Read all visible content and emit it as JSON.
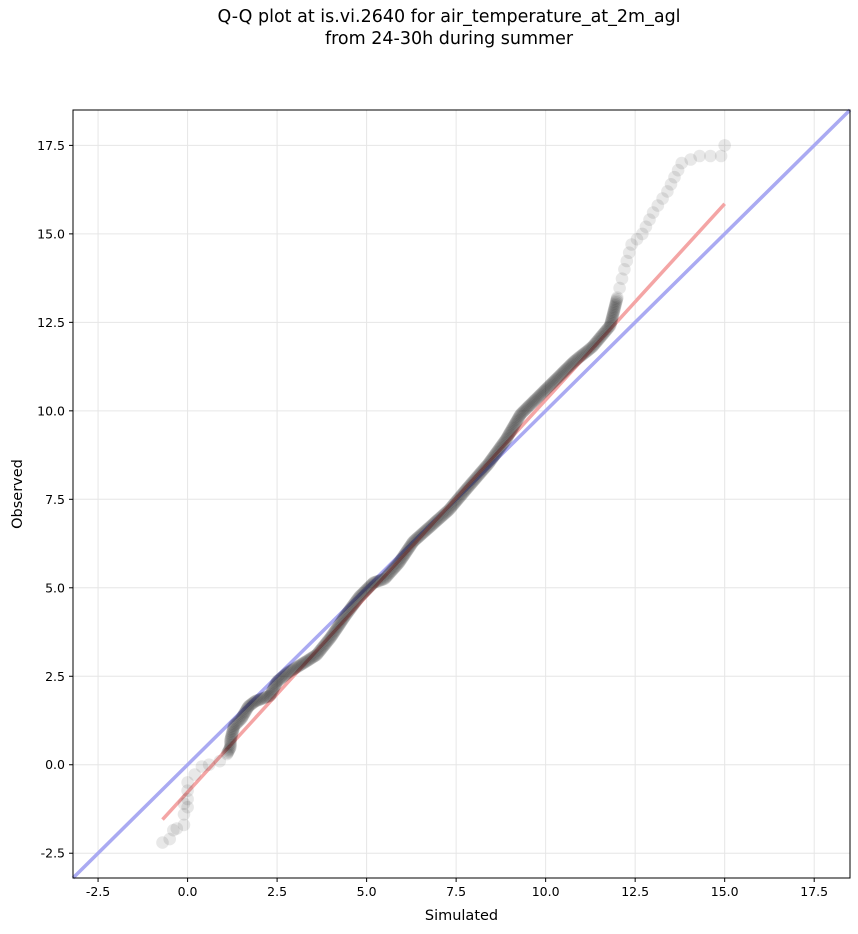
{
  "chart_data": {
    "type": "scatter",
    "title_lines": [
      "Q-Q plot at is.vi.2640 for air_temperature_at_2m_agl",
      "from 24-30h during summer"
    ],
    "xlabel": "Simulated",
    "ylabel": "Observed",
    "xlim": [
      -3.2,
      18.5
    ],
    "ylim": [
      -3.2,
      18.5
    ],
    "xticks": [
      "-2.5",
      "0.0",
      "2.5",
      "5.0",
      "7.5",
      "10.0",
      "12.5",
      "15.0",
      "17.5"
    ],
    "yticks": [
      "-2.5",
      "0.0",
      "2.5",
      "5.0",
      "7.5",
      "10.0",
      "12.5",
      "15.0",
      "17.5"
    ],
    "grid": true,
    "identity_line": {
      "color": "#aaaaf2",
      "from": [
        -3.2,
        -3.2
      ],
      "to": [
        18.5,
        18.5
      ]
    },
    "fit_line": {
      "color": "#f4a5a5",
      "from": [
        -0.7,
        -1.55
      ],
      "to": [
        15.0,
        15.85
      ]
    },
    "quantile_curve": [
      [
        -0.7,
        -2.2
      ],
      [
        -0.5,
        -2.1
      ],
      [
        -0.4,
        -1.85
      ],
      [
        -0.3,
        -1.8
      ],
      [
        -0.1,
        -1.7
      ],
      [
        -0.1,
        -1.1
      ],
      [
        0.0,
        -1.2
      ],
      [
        0.0,
        -0.5
      ],
      [
        0.4,
        -0.05
      ],
      [
        0.6,
        0.0
      ],
      [
        0.9,
        0.1
      ],
      [
        1.1,
        0.3
      ],
      [
        1.2,
        0.5
      ],
      [
        1.2,
        0.7
      ],
      [
        1.3,
        1.1
      ],
      [
        1.5,
        1.3
      ],
      [
        1.7,
        1.65
      ],
      [
        1.9,
        1.8
      ],
      [
        2.3,
        1.95
      ],
      [
        2.5,
        2.35
      ],
      [
        2.8,
        2.6
      ],
      [
        3.2,
        2.85
      ],
      [
        3.6,
        3.1
      ],
      [
        4.0,
        3.6
      ],
      [
        4.4,
        4.2
      ],
      [
        4.8,
        4.75
      ],
      [
        5.2,
        5.15
      ],
      [
        5.5,
        5.25
      ],
      [
        5.9,
        5.7
      ],
      [
        6.3,
        6.3
      ],
      [
        6.8,
        6.75
      ],
      [
        7.3,
        7.2
      ],
      [
        7.8,
        7.8
      ],
      [
        8.4,
        8.5
      ],
      [
        8.9,
        9.2
      ],
      [
        9.3,
        9.9
      ],
      [
        9.8,
        10.4
      ],
      [
        10.3,
        10.9
      ],
      [
        10.8,
        11.4
      ],
      [
        11.3,
        11.8
      ],
      [
        11.8,
        12.4
      ],
      [
        12.0,
        13.2
      ],
      [
        12.2,
        14.0
      ],
      [
        12.4,
        14.7
      ],
      [
        12.7,
        15.0
      ],
      [
        13.0,
        15.6
      ],
      [
        13.4,
        16.2
      ],
      [
        13.8,
        17.0
      ],
      [
        14.3,
        17.2
      ],
      [
        14.9,
        17.2
      ],
      [
        15.0,
        17.5
      ]
    ]
  }
}
